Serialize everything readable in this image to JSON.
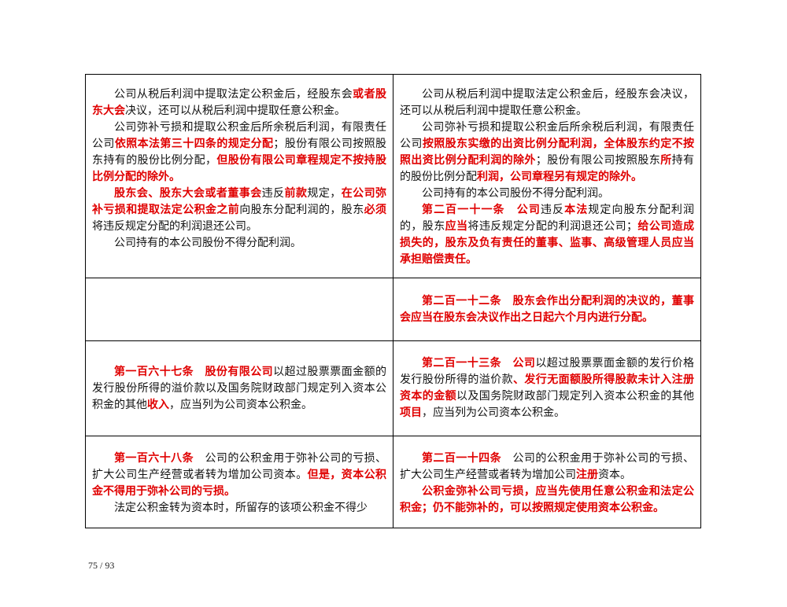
{
  "table": {
    "rows": [
      {
        "cells": [
          {
            "paragraphs": [
              {
                "runs": [
                  {
                    "text": "公司从税后利润中提取法定公积金后，经股东会",
                    "color": "#111111"
                  },
                  {
                    "text": "或者股东大会",
                    "color": "#e00000"
                  },
                  {
                    "text": "决议，还可以从税后利润中提取任意公积金。",
                    "color": "#111111"
                  }
                ]
              },
              {
                "runs": [
                  {
                    "text": "公司弥补亏损和提取公积金后所余税后利润，有限责任公司",
                    "color": "#111111"
                  },
                  {
                    "text": "依照本法第三十四条的规定分配",
                    "color": "#e00000"
                  },
                  {
                    "text": "；股份有限公司按照股东持有的股份比例分配，",
                    "color": "#111111"
                  },
                  {
                    "text": "但股份有限公司章程规定不按持股比例分配的除外。",
                    "color": "#e00000"
                  }
                ]
              },
              {
                "runs": [
                  {
                    "text": "股东会、股东大会或者董事会",
                    "color": "#e00000"
                  },
                  {
                    "text": "违反",
                    "color": "#111111"
                  },
                  {
                    "text": "前款",
                    "color": "#e00000"
                  },
                  {
                    "text": "规定，",
                    "color": "#111111"
                  },
                  {
                    "text": "在公司弥补亏损和提取法定公积金之前",
                    "color": "#e00000"
                  },
                  {
                    "text": "向股东分配利润的，股东",
                    "color": "#111111"
                  },
                  {
                    "text": "必须",
                    "color": "#e00000"
                  },
                  {
                    "text": "将违反规定分配的利润退还公司。",
                    "color": "#111111"
                  }
                ]
              },
              {
                "runs": [
                  {
                    "text": "公司持有的本公司股份不得分配利润。",
                    "color": "#111111"
                  }
                ]
              }
            ]
          },
          {
            "paragraphs": [
              {
                "runs": [
                  {
                    "text": "公司从税后利润中提取法定公积金后，经股东会决议，还可以从税后利润中提取任意公积金。",
                    "color": "#111111"
                  }
                ]
              },
              {
                "runs": [
                  {
                    "text": "公司弥补亏损和提取公积金后所余税后利润，有限责任公司",
                    "color": "#111111"
                  },
                  {
                    "text": "按照股东实缴的出资比例分配利润，全体股东约定不按照出资比例分配利润的除外",
                    "color": "#e00000"
                  },
                  {
                    "text": "；股份有限公司按照股东",
                    "color": "#111111"
                  },
                  {
                    "text": "所",
                    "color": "#e00000"
                  },
                  {
                    "text": "持有的股份比例分配",
                    "color": "#111111"
                  },
                  {
                    "text": "利润，公司章程另有规定的除外。",
                    "color": "#e00000"
                  }
                ]
              },
              {
                "runs": [
                  {
                    "text": "公司持有的本公司股份不得分配利润。",
                    "color": "#111111"
                  }
                ]
              },
              {
                "runs": [
                  {
                    "text": "第二百一十一条　公司",
                    "color": "#e00000"
                  },
                  {
                    "text": "违反",
                    "color": "#111111"
                  },
                  {
                    "text": "本法",
                    "color": "#e00000"
                  },
                  {
                    "text": "规定向股东分配利润的，股东",
                    "color": "#111111"
                  },
                  {
                    "text": "应当",
                    "color": "#e00000"
                  },
                  {
                    "text": "将违反规定分配的利润退还公司；",
                    "color": "#111111"
                  },
                  {
                    "text": "给公司造成损失的，股东及负有责任的董事、监事、高级管理人员应当承担赔偿责任。",
                    "color": "#e00000"
                  }
                ]
              }
            ]
          }
        ]
      },
      {
        "cells": [
          {
            "paragraphs": []
          },
          {
            "paragraphs": [
              {
                "runs": [
                  {
                    "text": "第二百一十二条　股东会作出分配利润的决议的，董事会应当在股东会决议作出之日起六个月内进行分配。",
                    "color": "#e00000"
                  }
                ]
              }
            ]
          }
        ]
      },
      {
        "cells": [
          {
            "paragraphs": [
              {
                "runs": [
                  {
                    "text": "第一百六十七条　股份有限公司",
                    "color": "#e00000"
                  },
                  {
                    "text": "以超过股票票面金额的发行股份所得的溢价款以及国务院财政部门规定列入资本公积金的其他",
                    "color": "#111111"
                  },
                  {
                    "text": "收入",
                    "color": "#e00000"
                  },
                  {
                    "text": "，应当列为公司资本公积金。",
                    "color": "#111111"
                  }
                ]
              }
            ]
          },
          {
            "paragraphs": [
              {
                "runs": [
                  {
                    "text": "第二百一十三条　公司",
                    "color": "#e00000"
                  },
                  {
                    "text": "以超过股票票面金额的发行价格发行股份所得的溢价款",
                    "color": "#111111"
                  },
                  {
                    "text": "、发行无面额股所得股款未计入注册资本的金额",
                    "color": "#e00000"
                  },
                  {
                    "text": "以及国务院财政部门规定列入资本公积金的其他",
                    "color": "#111111"
                  },
                  {
                    "text": "项目",
                    "color": "#e00000"
                  },
                  {
                    "text": "，应当列为公司资本公积金。",
                    "color": "#111111"
                  }
                ]
              }
            ]
          }
        ]
      },
      {
        "cells": [
          {
            "paragraphs": [
              {
                "runs": [
                  {
                    "text": "第一百六十八条",
                    "color": "#e00000"
                  },
                  {
                    "text": "　公司的公积金用于弥补公司的亏损、扩大公司生产经营或者转为增加公司资本。",
                    "color": "#111111"
                  },
                  {
                    "text": "但是，资本公积金不得用于弥补公司的亏损。",
                    "color": "#e00000"
                  }
                ]
              },
              {
                "runs": [
                  {
                    "text": "法定公积金转为资本时，所留存的该项公积金不得少",
                    "color": "#111111"
                  }
                ]
              }
            ]
          },
          {
            "paragraphs": [
              {
                "runs": [
                  {
                    "text": "第二百一十四条",
                    "color": "#e00000"
                  },
                  {
                    "text": "　公司的公积金用于弥补公司的亏损、扩大公司生产经营或者转为增加公司",
                    "color": "#111111"
                  },
                  {
                    "text": "注册",
                    "color": "#e00000"
                  },
                  {
                    "text": "资本。",
                    "color": "#111111"
                  }
                ]
              },
              {
                "runs": [
                  {
                    "text": "公积金弥补公司亏损，应当先使用任意公积金和法定公积金；仍不能弥补的，可以按照规定使用资本公积金。",
                    "color": "#e00000"
                  }
                ]
              }
            ]
          }
        ]
      }
    ]
  },
  "footer": {
    "page_number": "75 / 93"
  }
}
